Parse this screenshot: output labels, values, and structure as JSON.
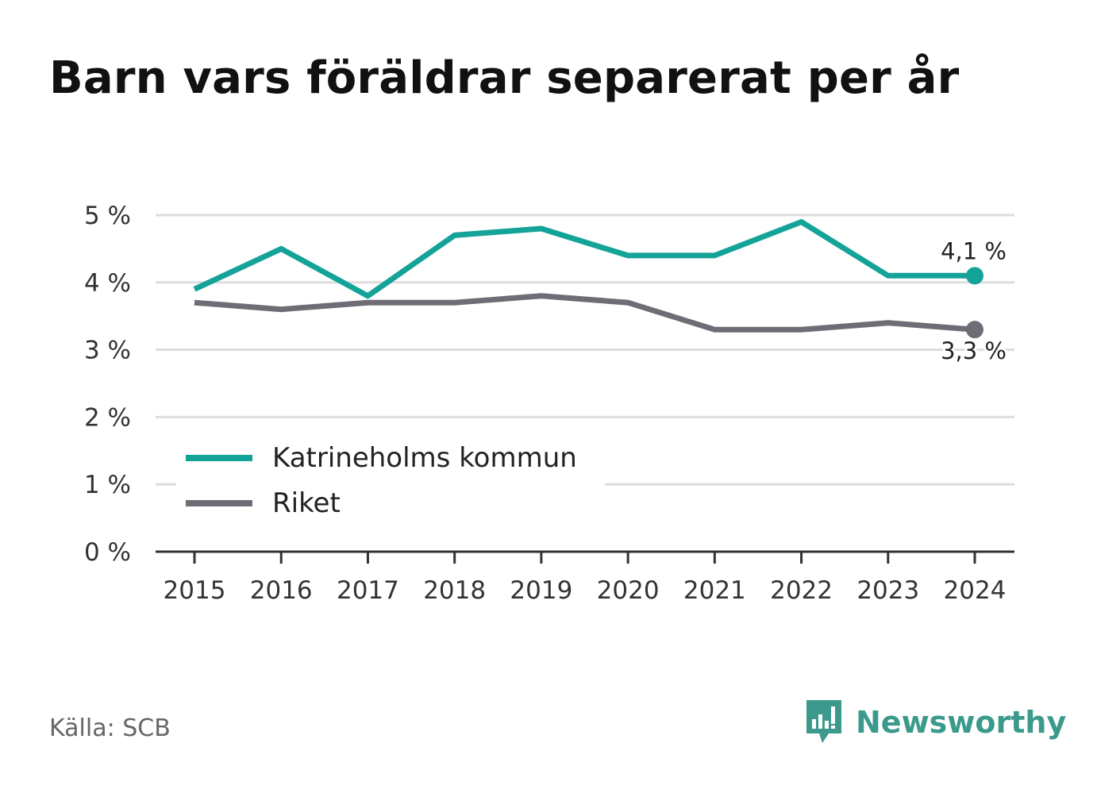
{
  "title": "Barn vars föräldrar separerat per år",
  "source": "Källa: SCB",
  "brand": {
    "name": "Newsworthy",
    "icon": "newsworthy-logo-icon",
    "color": "#3c9a8c"
  },
  "chart_data": {
    "type": "line",
    "x": [
      "2015",
      "2016",
      "2017",
      "2018",
      "2019",
      "2020",
      "2021",
      "2022",
      "2023",
      "2024"
    ],
    "series": [
      {
        "name": "Katrineholms kommun",
        "color": "#14a399",
        "values": [
          3.9,
          4.5,
          3.8,
          4.7,
          4.8,
          4.4,
          4.4,
          4.9,
          4.1,
          4.1
        ],
        "end_label": "4,1 %"
      },
      {
        "name": "Riket",
        "color": "#6e6d75",
        "values": [
          3.7,
          3.6,
          3.7,
          3.7,
          3.8,
          3.7,
          3.3,
          3.3,
          3.4,
          3.3
        ],
        "end_label": "3,3 %"
      }
    ],
    "yticks": [
      "0 %",
      "1 %",
      "2 %",
      "3 %",
      "4 %",
      "5 %"
    ],
    "ylim": [
      0,
      5
    ],
    "grid": true,
    "legend_position": "bottom-left"
  }
}
